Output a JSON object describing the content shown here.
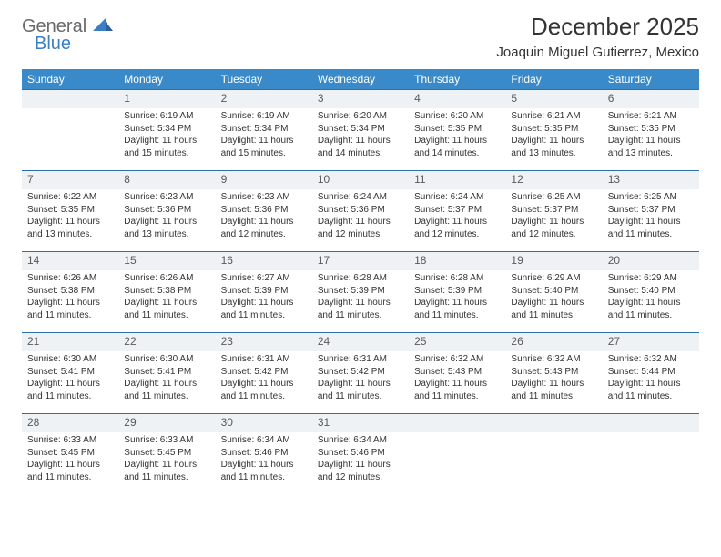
{
  "brand": {
    "word1": "General",
    "word2": "Blue"
  },
  "title": "December 2025",
  "location": "Joaquin Miguel Gutierrez, Mexico",
  "colors": {
    "header_bg": "#3a8ac9",
    "header_text": "#ffffff",
    "daynum_bg": "#eef2f5",
    "rule": "#2f6fa8",
    "brand_gray": "#6a6a6a",
    "brand_blue": "#3a7fc4",
    "body_text": "#333333"
  },
  "dow": [
    "Sunday",
    "Monday",
    "Tuesday",
    "Wednesday",
    "Thursday",
    "Friday",
    "Saturday"
  ],
  "start_offset": 1,
  "days": [
    {
      "n": 1,
      "sr": "6:19 AM",
      "ss": "5:34 PM",
      "dl": "11 hours and 15 minutes."
    },
    {
      "n": 2,
      "sr": "6:19 AM",
      "ss": "5:34 PM",
      "dl": "11 hours and 15 minutes."
    },
    {
      "n": 3,
      "sr": "6:20 AM",
      "ss": "5:34 PM",
      "dl": "11 hours and 14 minutes."
    },
    {
      "n": 4,
      "sr": "6:20 AM",
      "ss": "5:35 PM",
      "dl": "11 hours and 14 minutes."
    },
    {
      "n": 5,
      "sr": "6:21 AM",
      "ss": "5:35 PM",
      "dl": "11 hours and 13 minutes."
    },
    {
      "n": 6,
      "sr": "6:21 AM",
      "ss": "5:35 PM",
      "dl": "11 hours and 13 minutes."
    },
    {
      "n": 7,
      "sr": "6:22 AM",
      "ss": "5:35 PM",
      "dl": "11 hours and 13 minutes."
    },
    {
      "n": 8,
      "sr": "6:23 AM",
      "ss": "5:36 PM",
      "dl": "11 hours and 13 minutes."
    },
    {
      "n": 9,
      "sr": "6:23 AM",
      "ss": "5:36 PM",
      "dl": "11 hours and 12 minutes."
    },
    {
      "n": 10,
      "sr": "6:24 AM",
      "ss": "5:36 PM",
      "dl": "11 hours and 12 minutes."
    },
    {
      "n": 11,
      "sr": "6:24 AM",
      "ss": "5:37 PM",
      "dl": "11 hours and 12 minutes."
    },
    {
      "n": 12,
      "sr": "6:25 AM",
      "ss": "5:37 PM",
      "dl": "11 hours and 12 minutes."
    },
    {
      "n": 13,
      "sr": "6:25 AM",
      "ss": "5:37 PM",
      "dl": "11 hours and 11 minutes."
    },
    {
      "n": 14,
      "sr": "6:26 AM",
      "ss": "5:38 PM",
      "dl": "11 hours and 11 minutes."
    },
    {
      "n": 15,
      "sr": "6:26 AM",
      "ss": "5:38 PM",
      "dl": "11 hours and 11 minutes."
    },
    {
      "n": 16,
      "sr": "6:27 AM",
      "ss": "5:39 PM",
      "dl": "11 hours and 11 minutes."
    },
    {
      "n": 17,
      "sr": "6:28 AM",
      "ss": "5:39 PM",
      "dl": "11 hours and 11 minutes."
    },
    {
      "n": 18,
      "sr": "6:28 AM",
      "ss": "5:39 PM",
      "dl": "11 hours and 11 minutes."
    },
    {
      "n": 19,
      "sr": "6:29 AM",
      "ss": "5:40 PM",
      "dl": "11 hours and 11 minutes."
    },
    {
      "n": 20,
      "sr": "6:29 AM",
      "ss": "5:40 PM",
      "dl": "11 hours and 11 minutes."
    },
    {
      "n": 21,
      "sr": "6:30 AM",
      "ss": "5:41 PM",
      "dl": "11 hours and 11 minutes."
    },
    {
      "n": 22,
      "sr": "6:30 AM",
      "ss": "5:41 PM",
      "dl": "11 hours and 11 minutes."
    },
    {
      "n": 23,
      "sr": "6:31 AM",
      "ss": "5:42 PM",
      "dl": "11 hours and 11 minutes."
    },
    {
      "n": 24,
      "sr": "6:31 AM",
      "ss": "5:42 PM",
      "dl": "11 hours and 11 minutes."
    },
    {
      "n": 25,
      "sr": "6:32 AM",
      "ss": "5:43 PM",
      "dl": "11 hours and 11 minutes."
    },
    {
      "n": 26,
      "sr": "6:32 AM",
      "ss": "5:43 PM",
      "dl": "11 hours and 11 minutes."
    },
    {
      "n": 27,
      "sr": "6:32 AM",
      "ss": "5:44 PM",
      "dl": "11 hours and 11 minutes."
    },
    {
      "n": 28,
      "sr": "6:33 AM",
      "ss": "5:45 PM",
      "dl": "11 hours and 11 minutes."
    },
    {
      "n": 29,
      "sr": "6:33 AM",
      "ss": "5:45 PM",
      "dl": "11 hours and 11 minutes."
    },
    {
      "n": 30,
      "sr": "6:34 AM",
      "ss": "5:46 PM",
      "dl": "11 hours and 11 minutes."
    },
    {
      "n": 31,
      "sr": "6:34 AM",
      "ss": "5:46 PM",
      "dl": "11 hours and 12 minutes."
    }
  ],
  "labels": {
    "sunrise": "Sunrise:",
    "sunset": "Sunset:",
    "daylight": "Daylight:"
  }
}
